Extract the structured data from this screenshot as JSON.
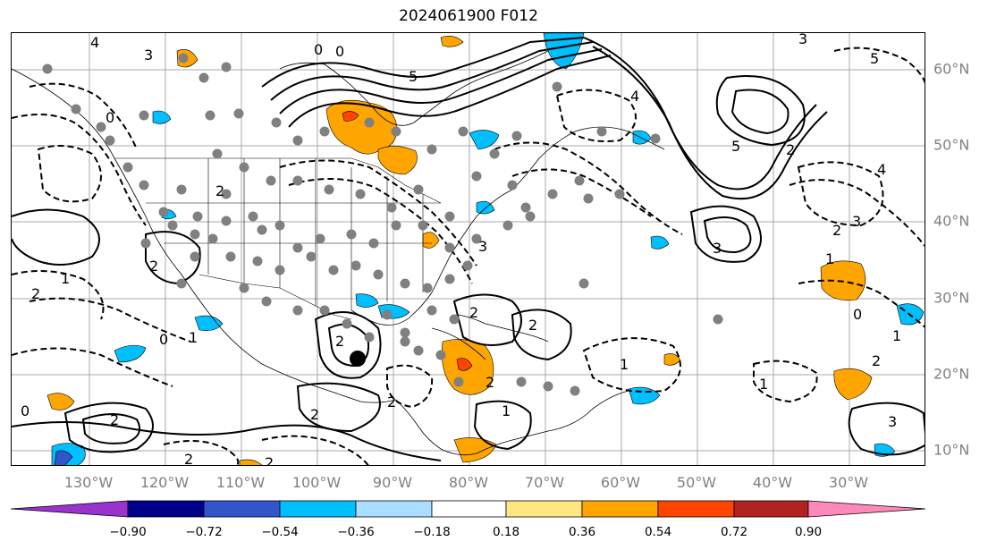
{
  "title": "2024061900 F012",
  "lon_labels": [
    "130°W",
    "120°W",
    "110°W",
    "100°W",
    "90°W",
    "80°W",
    "70°W",
    "60°W",
    "50°W",
    "40°W",
    "30°W"
  ],
  "lat_labels": [
    "60°N",
    "50°N",
    "40°N",
    "30°N",
    "20°N",
    "10°N"
  ],
  "colorbar": {
    "ticks": [
      "−0.90",
      "−0.72",
      "−0.54",
      "−0.36",
      "−0.18",
      "0.18",
      "0.36",
      "0.54",
      "0.72",
      "0.90"
    ],
    "colors": [
      "#9933cc",
      "#00008b",
      "#3355cc",
      "#00bfff",
      "#aaddff",
      "#ffffff",
      "#ffe680",
      "#ffa500",
      "#ff4500",
      "#b22222",
      "#ff88bb"
    ]
  },
  "contour_labels": [
    "4",
    "3",
    "0",
    "0",
    "5",
    "4",
    "3",
    "5",
    "2",
    "0",
    "5",
    "2",
    "4",
    "3",
    "2",
    "3",
    "1",
    "2",
    "2",
    "1",
    "0",
    "2",
    "2",
    "2",
    "1",
    "2",
    "1",
    "2",
    "1",
    "2",
    "2",
    "0",
    "3",
    "0",
    "1",
    "2",
    "2",
    "1",
    "2",
    "3"
  ],
  "colors": {
    "positive": "#ffa500",
    "positive_strong": "#ff4500",
    "negative": "#00bfff",
    "station": "#808080",
    "center": "#000000"
  }
}
